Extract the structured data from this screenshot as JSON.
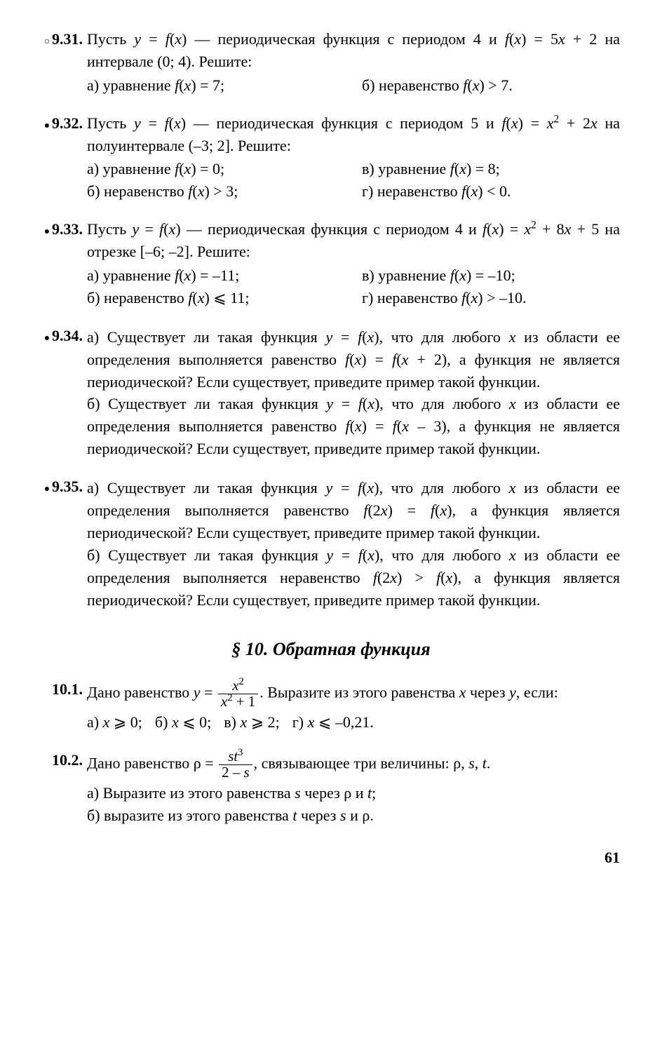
{
  "page_number": "61",
  "section_title": "§ 10. Обратная функция",
  "problems": [
    {
      "marker": "circle",
      "num": "9.31.",
      "intro": "Пусть <i>y</i> = <i>f</i>(<i>x</i>) — периодическая функция с периодом 4 и <i>f</i>(<i>x</i>) = 5<i>x</i> + 2 на интервале (0; 4). Решите:",
      "parts_layout": "two",
      "parts": [
        "а) уравнение <i>f</i>(<i>x</i>) = 7;",
        "б) неравенство <i>f</i>(<i>x</i>) &gt; 7."
      ]
    },
    {
      "marker": "bullet",
      "num": "9.32.",
      "intro": "Пусть <i>y</i> = <i>f</i>(<i>x</i>) — периодическая функция с периодом 5 и <i>f</i>(<i>x</i>) = <i>x</i><sup>2</sup> + 2<i>x</i> на полуинтервале (–3; 2]. Решите:",
      "parts_layout": "two",
      "parts": [
        "а) уравнение <i>f</i>(<i>x</i>) = 0;",
        "в) уравнение <i>f</i>(<i>x</i>) = 8;",
        "б) неравенство <i>f</i>(<i>x</i>) &gt; 3;",
        "г) неравенство <i>f</i>(<i>x</i>) &lt; 0."
      ]
    },
    {
      "marker": "bullet",
      "num": "9.33.",
      "intro": "Пусть <i>y</i> = <i>f</i>(<i>x</i>) — периодическая функция с периодом 4 и <i>f</i>(<i>x</i>) = <i>x</i><sup>2</sup> + 8<i>x</i> + 5 на отрезке [–6; –2]. Решите:",
      "parts_layout": "two",
      "parts": [
        "а) уравнение <i>f</i>(<i>x</i>) = –11;",
        "в) уравнение <i>f</i>(<i>x</i>) = –10;",
        "б) неравенство <i>f</i>(<i>x</i>) ⩽ 11;",
        "г) неравенство <i>f</i>(<i>x</i>) &gt; –10."
      ]
    },
    {
      "marker": "bullet",
      "num": "9.34.",
      "intro": "",
      "parts_layout": "single",
      "parts": [
        "а) Существует ли такая функция <i>y</i> = <i>f</i>(<i>x</i>), что для любого <i>x</i> из области ее определения выполняется равенство <i>f</i>(<i>x</i>) = <i>f</i>(<i>x</i> + 2), а функция не является периодической? Если существует, приведите пример такой функции.",
        "б) Существует ли такая функция <i>y</i> = <i>f</i>(<i>x</i>), что для любого <i>x</i> из области ее определения выполняется равенство <i>f</i>(<i>x</i>) = <i>f</i>(<i>x</i> – 3), а функция не является периодической? Если существует, приведите пример такой функции."
      ]
    },
    {
      "marker": "bullet",
      "num": "9.35.",
      "intro": "",
      "parts_layout": "single",
      "parts": [
        "а) Существует ли такая функция <i>y</i> = <i>f</i>(<i>x</i>), что для любого <i>x</i> из области ее определения выполняется равенство <i>f</i>(2<i>x</i>) = <i>f</i>(<i>x</i>), а функция является периодической? Если существует, приведите пример такой функции.",
        "б) Существует ли такая функция <i>y</i> = <i>f</i>(<i>x</i>), что для любого <i>x</i> из области ее определения выполняется неравенство <i>f</i>(2<i>x</i>) &gt; <i>f</i>(<i>x</i>), а функция является периодической? Если существует, приведите пример такой функции."
      ]
    }
  ],
  "section2_problems": [
    {
      "num": "10.1.",
      "intro_html": "Дано равенство <i>y</i> = <span class=\"frac\"><span class=\"num\"><i>x</i><sup>2</sup></span><span class=\"den\"><i>x</i><sup>2</sup> + 1</span></span>. Выразите из этого равенства <i>x</i> через <i>y</i>, если:",
      "parts_layout": "four",
      "parts": [
        "а) <i>x</i> ⩾ 0;",
        "б) <i>x</i> ⩽ 0;",
        "в) <i>x</i> ⩾ 2;",
        "г) <i>x</i> ⩽ –0,21."
      ]
    },
    {
      "num": "10.2.",
      "intro_html": "Дано равенство ρ = <span class=\"frac\"><span class=\"num\"><i>st</i><sup>3</sup></span><span class=\"den\">2 – <i>s</i></span></span>, связывающее три величины: ρ, <i>s</i>, <i>t</i>.",
      "parts_layout": "single",
      "parts": [
        "а) Выразите из этого равенства <i>s</i> через ρ и <i>t</i>;",
        "б) выразите из этого равенства <i>t</i> через <i>s</i> и ρ."
      ]
    }
  ]
}
